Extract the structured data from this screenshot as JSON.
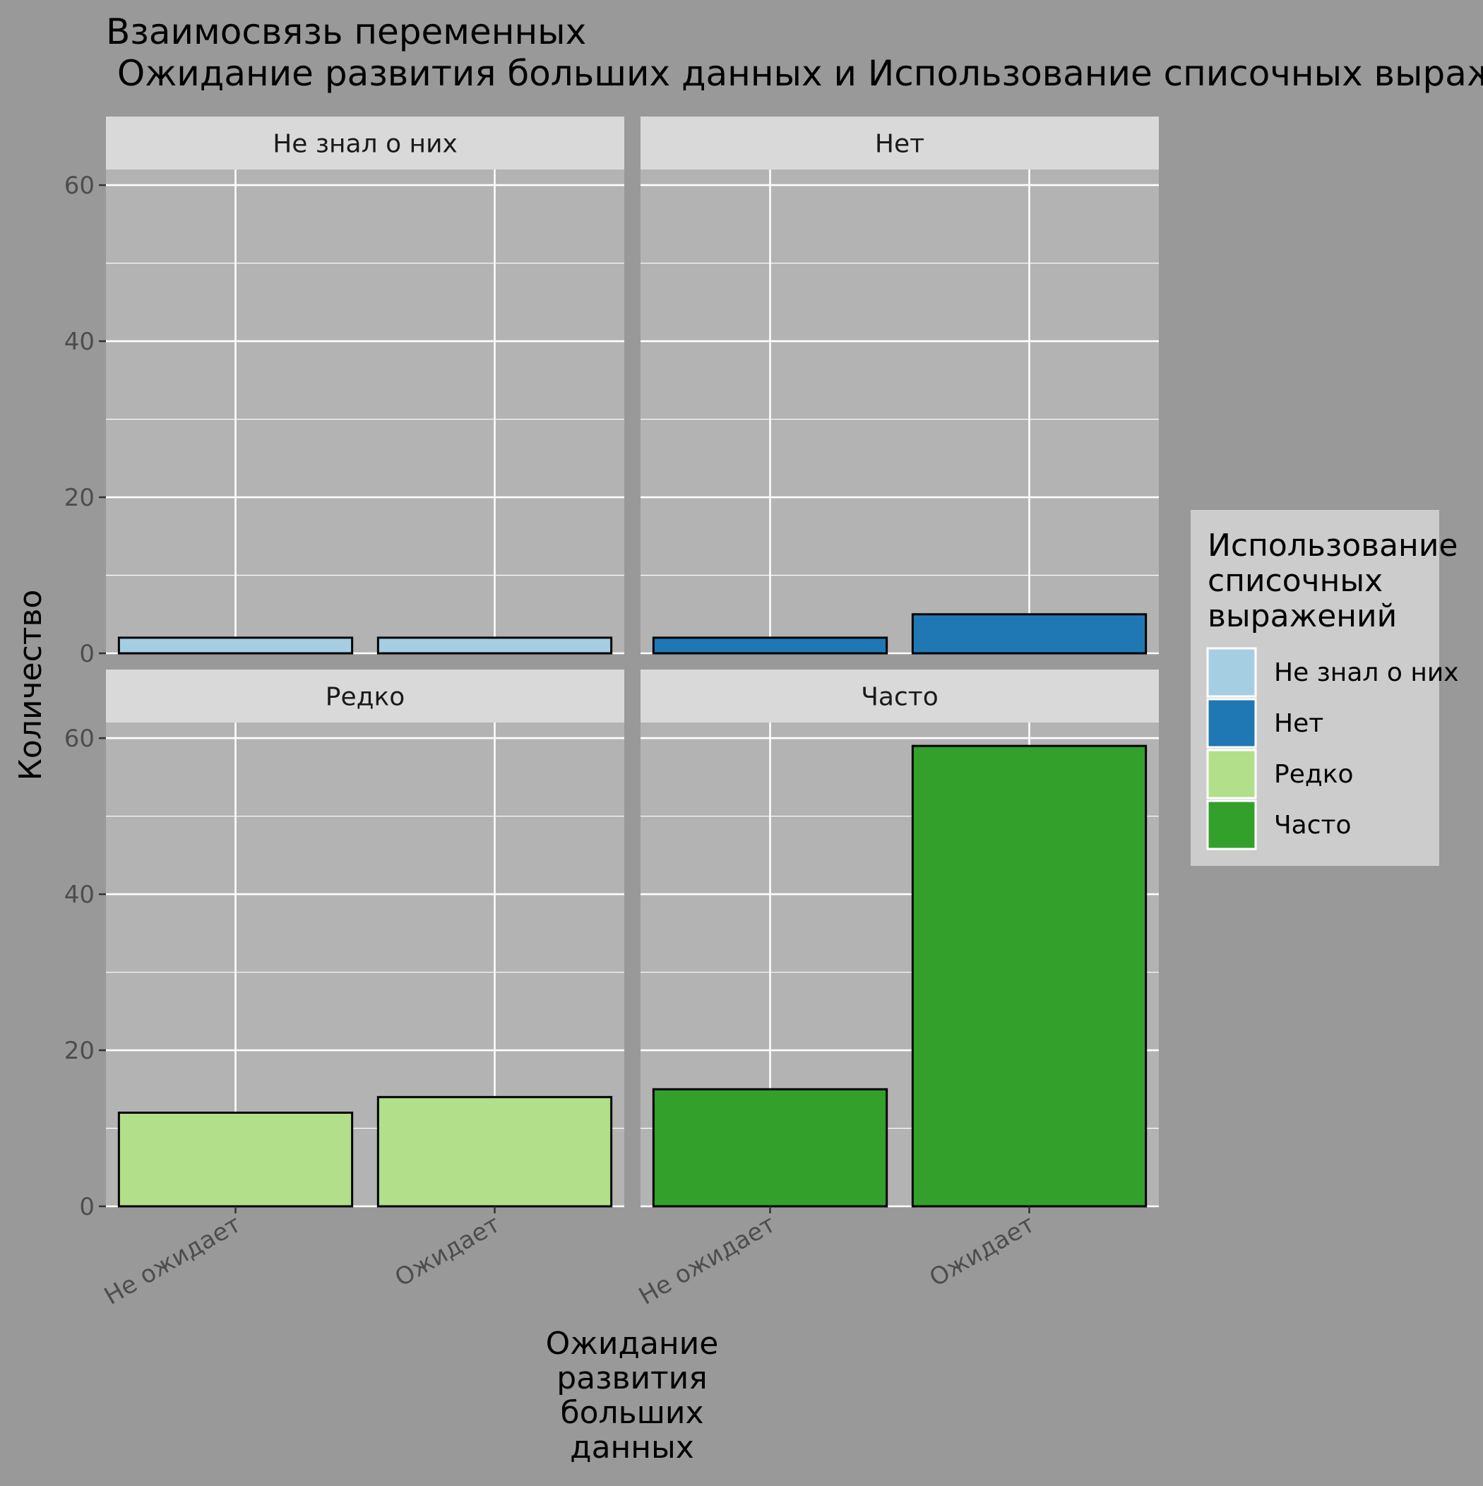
{
  "chart_data": {
    "type": "bar",
    "title": "Взаимосвязь переменных\n Ожидание развития больших данных и Использование списочных выражений",
    "xlabel": "Ожидание\nразвития\nбольших\nданных",
    "ylabel": "Количество",
    "categories": [
      "Не ожидает",
      "Ожидает"
    ],
    "ylim": [
      0,
      62
    ],
    "yticks": [
      0,
      20,
      40,
      60
    ],
    "grid": true,
    "facet_layout": "2x2",
    "legend": {
      "title": "Использование\nсписочных\nвыражений",
      "placement": "right"
    },
    "series": [
      {
        "name": "Не знал о них",
        "color": "#A6CEE3",
        "values": [
          2,
          2
        ]
      },
      {
        "name": "Нет",
        "color": "#1F78B4",
        "values": [
          2,
          5
        ]
      },
      {
        "name": "Редко",
        "color": "#B2DF8A",
        "values": [
          12,
          14
        ]
      },
      {
        "name": "Часто",
        "color": "#33A02C",
        "values": [
          15,
          59
        ]
      }
    ]
  },
  "colors": {
    "background": "#999999",
    "panel": "#B3B3B3",
    "strip": "#D9D9D9",
    "legend_bg": "#CCCCCC",
    "grid": "#FFFFFF",
    "bar_outline": "#000000",
    "tick_text": "#4D4D4D",
    "text": "#000000"
  }
}
